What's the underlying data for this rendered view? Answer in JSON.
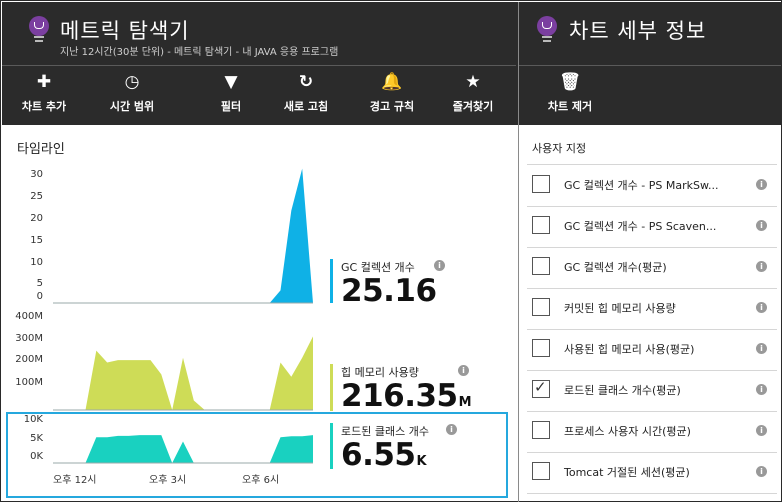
{
  "left_blade": {
    "title": "메트릭 탐색기",
    "subtitle": "지난 12시간(30분 단위) - 메트릭 탐색기 - 내 JAVA 응용 프로그램",
    "toolbar": [
      {
        "icon": "plus-icon",
        "glyph": "✚",
        "label": "차트 추가"
      },
      {
        "icon": "clock-icon",
        "glyph": "◷",
        "label": "시간 범위"
      },
      {
        "icon": "filter-icon",
        "glyph": "▼",
        "label": "필터"
      },
      {
        "icon": "refresh-icon",
        "glyph": "↻",
        "label": "새로 고침"
      },
      {
        "icon": "bell-icon",
        "glyph": "🔔",
        "label": "경고 규칙"
      },
      {
        "icon": "bookmark-star-icon",
        "glyph": "★",
        "label": "즐겨찾기"
      }
    ]
  },
  "right_blade": {
    "title": "차트 세부 정보",
    "toolbar": [
      {
        "icon": "trash-icon",
        "glyph": "🗑",
        "label": "차트 제거"
      }
    ],
    "customize_label": "사용자 지정",
    "options": [
      {
        "label": "GC 컬렉션 개수 - PS MarkSw...",
        "checked": false
      },
      {
        "label": "GC 컬렉션 개수 - PS Scaven...",
        "checked": false
      },
      {
        "label": "GC 컬렉션 개수(평균)",
        "checked": false
      },
      {
        "label": "커밋된 힙 메모리 사용량",
        "checked": false
      },
      {
        "label": "사용된 힙 메모리 사용(평균)",
        "checked": false
      },
      {
        "label": "로드된 클래스 개수(평균)",
        "checked": true
      },
      {
        "label": "프로세스 사용자 시간(평균)",
        "checked": false
      },
      {
        "label": "Tomcat 거절된 세션(평균)",
        "checked": false
      }
    ]
  },
  "timeline": {
    "title": "타임라인",
    "x_ticks": [
      "오후 12시",
      "오후 3시",
      "오후 6시"
    ]
  },
  "colors": {
    "header_bg": "#2b2b2b",
    "gc": "#0fb1e6",
    "heap": "#cedc57",
    "classes": "#19d1c0",
    "selection": "#25a8de",
    "bulb": "#7b3fa0"
  },
  "chart_data": [
    {
      "type": "area",
      "name": "GC 컬렉션 개수",
      "summary_value": "25.16",
      "summary_unit": "",
      "y_ticks": [
        "30",
        "25",
        "20",
        "15",
        "10",
        "5",
        "0"
      ],
      "ylim": [
        0,
        30
      ],
      "x": [
        0,
        1,
        2,
        3,
        4,
        5,
        6,
        7,
        8,
        9,
        10,
        11,
        12,
        13,
        14,
        15,
        16,
        17,
        18,
        19,
        20,
        21,
        22,
        23,
        24
      ],
      "values": [
        0,
        0,
        0,
        0,
        0,
        0,
        0,
        0,
        0,
        0,
        0,
        0,
        0,
        0,
        0,
        0,
        0,
        0,
        0,
        0,
        0,
        3,
        22,
        32,
        0
      ]
    },
    {
      "type": "area",
      "name": "힙 메모리 사용량",
      "summary_value": "216.35",
      "summary_unit": "M",
      "y_ticks": [
        "400M",
        "300M",
        "200M",
        "100M"
      ],
      "ylim": [
        0,
        400
      ],
      "x": [
        0,
        1,
        2,
        3,
        4,
        5,
        6,
        7,
        8,
        9,
        10,
        11,
        12,
        13,
        14,
        15,
        16,
        17,
        18,
        19,
        20,
        21,
        22,
        23,
        24
      ],
      "values": [
        0,
        0,
        0,
        0,
        250,
        200,
        210,
        210,
        210,
        210,
        150,
        0,
        220,
        40,
        0,
        0,
        0,
        0,
        0,
        0,
        0,
        200,
        140,
        220,
        310
      ]
    },
    {
      "type": "area",
      "name": "로드된 클래스 개수",
      "summary_value": "6.55",
      "summary_unit": "K",
      "y_ticks": [
        "10K",
        "5K",
        "0K"
      ],
      "ylim": [
        0,
        10
      ],
      "x": [
        0,
        1,
        2,
        3,
        4,
        5,
        6,
        7,
        8,
        9,
        10,
        11,
        12,
        13,
        14,
        15,
        16,
        17,
        18,
        19,
        20,
        21,
        22,
        23,
        24
      ],
      "values": [
        0,
        0,
        0,
        0,
        6,
        6,
        6.3,
        6.3,
        6.5,
        6.5,
        6.5,
        0,
        5,
        0,
        0,
        0,
        0,
        0,
        0,
        0,
        0,
        6,
        6.2,
        6.2,
        6.5
      ]
    }
  ]
}
